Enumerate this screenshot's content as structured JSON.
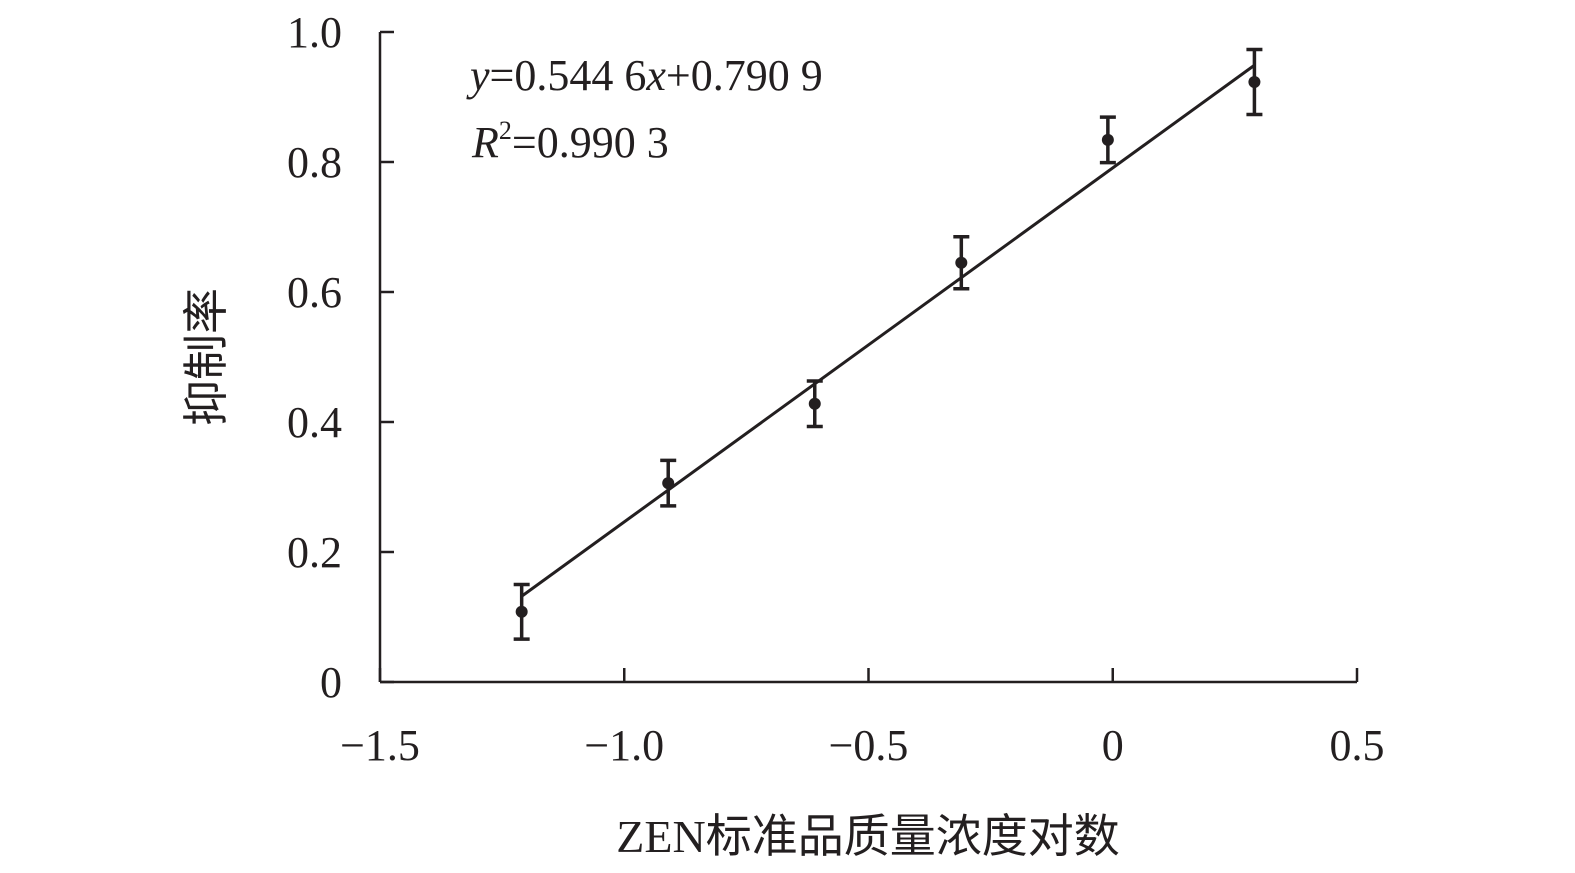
{
  "chart_data": {
    "type": "scatter",
    "title": "",
    "xlabel": "ZEN标准品质量浓度对数",
    "ylabel": "抑制率",
    "xlim": [
      -1.5,
      0.5
    ],
    "ylim": [
      0,
      1.0
    ],
    "xticks": [
      -1.5,
      -1.0,
      -0.5,
      0,
      0.5
    ],
    "xtick_labels": [
      "−1.5",
      "−1.0",
      "−0.5",
      "0",
      "0.5"
    ],
    "yticks": [
      0,
      0.2,
      0.4,
      0.6,
      0.8,
      1.0
    ],
    "ytick_labels": [
      "0",
      "0.2",
      "0.4",
      "0.6",
      "0.8",
      "1.0"
    ],
    "grid": false,
    "points": [
      {
        "x": -1.21,
        "y": 0.108,
        "err": 0.042
      },
      {
        "x": -0.91,
        "y": 0.306,
        "err": 0.035
      },
      {
        "x": -0.61,
        "y": 0.428,
        "err": 0.035
      },
      {
        "x": -0.31,
        "y": 0.645,
        "err": 0.04
      },
      {
        "x": -0.01,
        "y": 0.834,
        "err": 0.035
      },
      {
        "x": 0.29,
        "y": 0.923,
        "err": 0.05
      }
    ],
    "fit": {
      "slope": 0.5446,
      "intercept": 0.7909,
      "x_range": [
        -1.21,
        0.29
      ]
    },
    "annotation": {
      "eq_y": "y",
      "eq_mid": "=0.544 6",
      "eq_x": "x",
      "eq_end": "+0.790 9",
      "r_R": "R",
      "r_sup": "2",
      "r_val": "=0.990 3"
    },
    "colors": {
      "ink": "#231f20"
    }
  }
}
